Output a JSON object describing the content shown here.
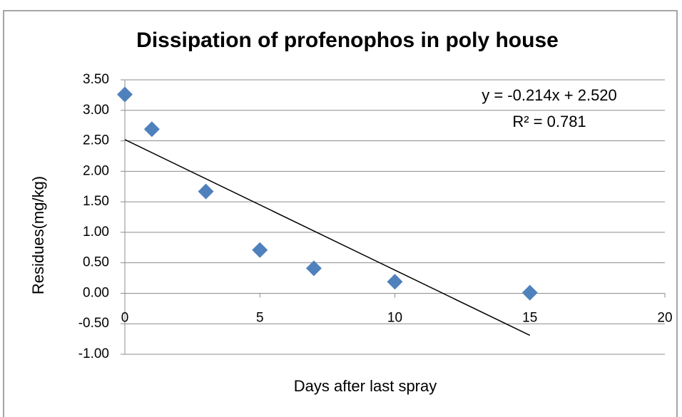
{
  "chart_data": {
    "type": "scatter",
    "title": "Dissipation of profenophos in poly house",
    "xlabel": "Days after last spray",
    "ylabel": "Residues(mg/kg)",
    "series": [
      {
        "name": "Residues",
        "color": "#4f81bd",
        "x": [
          0,
          1,
          3,
          5,
          7,
          10,
          15
        ],
        "values": [
          3.26,
          2.69,
          1.67,
          0.71,
          0.41,
          0.19,
          0.01
        ]
      }
    ],
    "trendline": {
      "equation": "y = -0.214x + 2.520",
      "r2": "R² = 0.781",
      "slope": -0.214,
      "intercept": 2.52
    },
    "xlim": [
      0,
      20
    ],
    "xticks": [
      0,
      5,
      10,
      15,
      20
    ],
    "ylim": [
      -1,
      3.5
    ],
    "yticks": [
      {
        "value": -1,
        "label": "-1.00"
      },
      {
        "value": -0.5,
        "label": "-0.50"
      },
      {
        "value": 0,
        "label": "0.00"
      },
      {
        "value": 0.5,
        "label": "0.50"
      },
      {
        "value": 1,
        "label": "1.00"
      },
      {
        "value": 1.5,
        "label": "1.50"
      },
      {
        "value": 2,
        "label": "2.00"
      },
      {
        "value": 2.5,
        "label": "2.50"
      },
      {
        "value": 3,
        "label": "3.00"
      },
      {
        "value": 3.5,
        "label": "3.50"
      }
    ],
    "grid": true
  }
}
